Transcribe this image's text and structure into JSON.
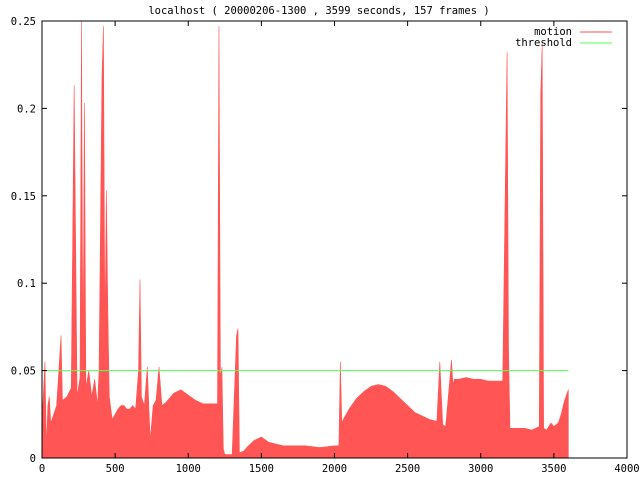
{
  "chart_data": {
    "type": "area",
    "title": "localhost ( 20000206-1300 , 3599 seconds, 157 frames )",
    "xlabel": "",
    "ylabel": "",
    "xlim": [
      0,
      4000
    ],
    "ylim": [
      0,
      0.25
    ],
    "x_ticks": [
      0,
      500,
      1000,
      1500,
      2000,
      2500,
      3000,
      3500,
      4000
    ],
    "y_ticks": [
      0,
      0.05,
      0.1,
      0.15,
      0.2,
      0.25
    ],
    "x_tick_labels": [
      "0",
      "500",
      "1000",
      "1500",
      "2000",
      "2500",
      "3000",
      "3500",
      "4000"
    ],
    "y_tick_labels": [
      "0",
      "0.05",
      "0.1",
      "0.15",
      "0.2",
      "0.25"
    ],
    "grid": false,
    "legend_position": "top-right",
    "series": [
      {
        "name": "motion",
        "color": "#ff5555",
        "x": [
          0,
          20,
          30,
          40,
          50,
          60,
          100,
          130,
          140,
          170,
          200,
          220,
          240,
          260,
          270,
          280,
          290,
          300,
          320,
          340,
          360,
          380,
          390,
          410,
          420,
          430,
          440,
          450,
          460,
          480,
          500,
          520,
          540,
          560,
          580,
          600,
          620,
          640,
          660,
          670,
          680,
          700,
          720,
          740,
          760,
          780,
          800,
          820,
          850,
          900,
          950,
          1000,
          1050,
          1100,
          1150,
          1200,
          1210,
          1220,
          1230,
          1240,
          1250,
          1280,
          1300,
          1330,
          1340,
          1350,
          1380,
          1400,
          1450,
          1500,
          1550,
          1600,
          1650,
          1700,
          1800,
          1900,
          2000,
          2030,
          2040,
          2050,
          2060,
          2100,
          2150,
          2200,
          2250,
          2300,
          2350,
          2400,
          2450,
          2500,
          2550,
          2600,
          2650,
          2700,
          2720,
          2740,
          2760,
          2800,
          2810,
          2820,
          2850,
          2900,
          2950,
          3000,
          3050,
          3100,
          3150,
          3180,
          3190,
          3200,
          3210,
          3250,
          3300,
          3350,
          3400,
          3410,
          3420,
          3430,
          3450,
          3480,
          3500,
          3530,
          3550,
          3570,
          3590,
          3599
        ],
        "values": [
          0.02,
          0.055,
          0.005,
          0.03,
          0.035,
          0.02,
          0.03,
          0.07,
          0.033,
          0.035,
          0.04,
          0.213,
          0.035,
          0.046,
          0.25,
          0.05,
          0.203,
          0.04,
          0.05,
          0.035,
          0.045,
          0.03,
          0.05,
          0.217,
          0.247,
          0.07,
          0.153,
          0.085,
          0.035,
          0.022,
          0.025,
          0.028,
          0.03,
          0.03,
          0.028,
          0.028,
          0.03,
          0.028,
          0.05,
          0.102,
          0.035,
          0.03,
          0.052,
          0.01,
          0.03,
          0.033,
          0.052,
          0.03,
          0.032,
          0.037,
          0.039,
          0.036,
          0.033,
          0.031,
          0.031,
          0.031,
          0.247,
          0.045,
          0.052,
          0.005,
          0.002,
          0.002,
          0.002,
          0.07,
          0.074,
          0.003,
          0.004,
          0.006,
          0.01,
          0.012,
          0.009,
          0.008,
          0.007,
          0.007,
          0.007,
          0.006,
          0.007,
          0.007,
          0.055,
          0.02,
          0.022,
          0.028,
          0.034,
          0.038,
          0.041,
          0.042,
          0.041,
          0.038,
          0.034,
          0.03,
          0.026,
          0.024,
          0.022,
          0.021,
          0.055,
          0.019,
          0.018,
          0.056,
          0.042,
          0.045,
          0.045,
          0.046,
          0.045,
          0.045,
          0.044,
          0.044,
          0.044,
          0.232,
          0.062,
          0.017,
          0.017,
          0.017,
          0.017,
          0.016,
          0.018,
          0.207,
          0.237,
          0.017,
          0.016,
          0.02,
          0.018,
          0.02,
          0.025,
          0.032,
          0.037,
          0.039
        ]
      },
      {
        "name": "threshold",
        "color": "#55ff55",
        "x": [
          0,
          3599
        ],
        "values": [
          0.05,
          0.05
        ]
      }
    ]
  }
}
